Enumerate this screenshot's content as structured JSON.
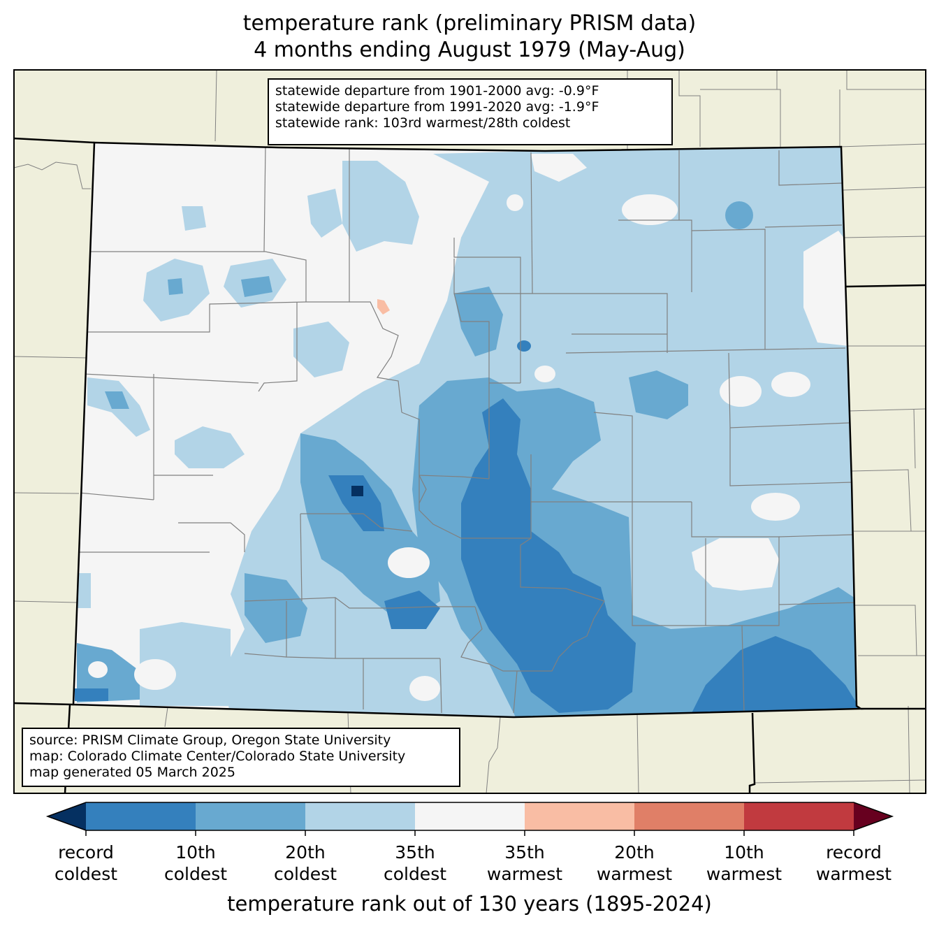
{
  "title": {
    "line1": "temperature rank (preliminary PRISM data)",
    "line2": "4 months ending August 1979 (May-Aug)"
  },
  "stats": {
    "line1": "statewide departure from 1901-2000 avg: -0.9°F",
    "line2": "statewide departure from 1991-2020 avg: -1.9°F",
    "line3": "statewide rank: 103rd warmest/28th coldest"
  },
  "source": {
    "line1": "source: PRISM Climate Group, Oregon State University",
    "line2": "map: Colorado Climate Center/Colorado State University",
    "line3": "map generated 05 March 2025"
  },
  "colorbar": {
    "label": "temperature rank out of 130 years (1895-2024)",
    "extend_low_color": "#053061",
    "extend_high_color": "#67001f",
    "bins": [
      {
        "from": "record coldest",
        "to": "10th coldest",
        "color": "#3480bd"
      },
      {
        "from": "10th coldest",
        "to": "20th coldest",
        "color": "#68a9d0"
      },
      {
        "from": "20th coldest",
        "to": "35th coldest",
        "color": "#b2d4e7"
      },
      {
        "from": "35th coldest",
        "to": "35th warmest",
        "color": "#f5f5f5"
      },
      {
        "from": "35th warmest",
        "to": "20th warmest",
        "color": "#f9bda4"
      },
      {
        "from": "20th warmest",
        "to": "10th warmest",
        "color": "#e07f67"
      },
      {
        "from": "10th warmest",
        "to": "record warmest",
        "color": "#c13a3f"
      }
    ],
    "ticks": [
      {
        "line1": "record",
        "line2": "coldest"
      },
      {
        "line1": "10th",
        "line2": "coldest"
      },
      {
        "line1": "20th",
        "line2": "coldest"
      },
      {
        "line1": "35th",
        "line2": "coldest"
      },
      {
        "line1": "35th",
        "line2": "warmest"
      },
      {
        "line1": "20th",
        "line2": "warmest"
      },
      {
        "line1": "10th",
        "line2": "warmest"
      },
      {
        "line1": "record",
        "line2": "warmest"
      }
    ]
  },
  "map_colors": {
    "background_land": "#efefdc",
    "county_lines": "#808080",
    "state_lines": "#000000"
  }
}
